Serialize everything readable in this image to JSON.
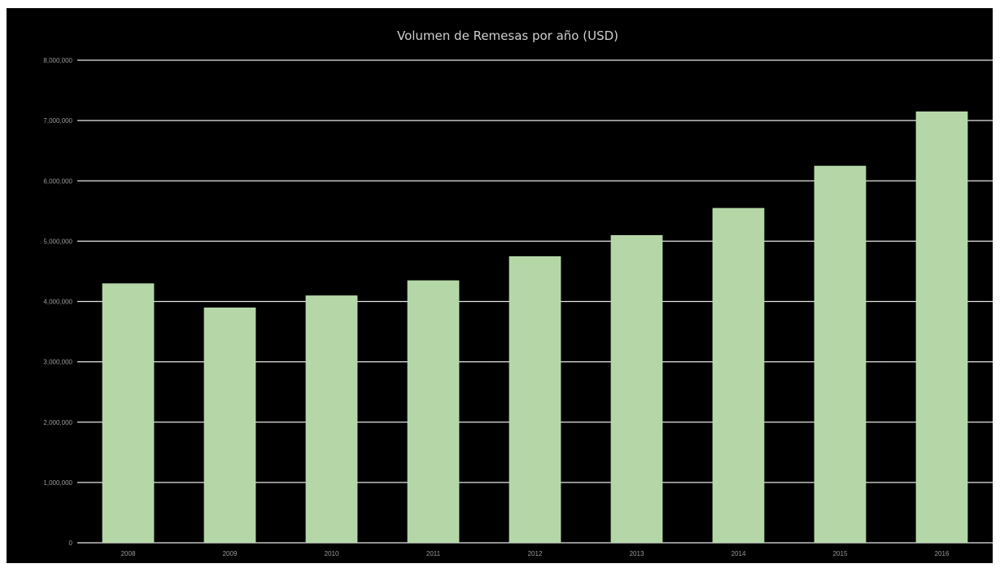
{
  "chart_data": {
    "type": "bar",
    "title": "Volumen de Remesas por año (USD)",
    "xlabel": "",
    "ylabel": "",
    "categories": [
      "2008",
      "2009",
      "2010",
      "2011",
      "2012",
      "2013",
      "2014",
      "2015",
      "2016"
    ],
    "values": [
      4300000,
      3900000,
      4100000,
      4350000,
      4750000,
      5100000,
      5550000,
      6250000,
      7150000
    ],
    "yticks": [
      0,
      1000000,
      2000000,
      3000000,
      4000000,
      5000000,
      6000000,
      7000000,
      8000000
    ],
    "ytick_labels": [
      "0",
      "1,000,000",
      "2,000,000",
      "3,000,000",
      "4,000,000",
      "5,000,000",
      "6,000,000",
      "7,000,000",
      "8,000,000"
    ],
    "ylim": [
      0,
      8000000
    ],
    "grid": true,
    "legend": "none",
    "colors": {
      "background": "#000000",
      "bar": "#b5d7a8",
      "grid": "#e6e6e6",
      "title": "#cfcfcf",
      "tick_label": "#9a9a9a"
    }
  }
}
